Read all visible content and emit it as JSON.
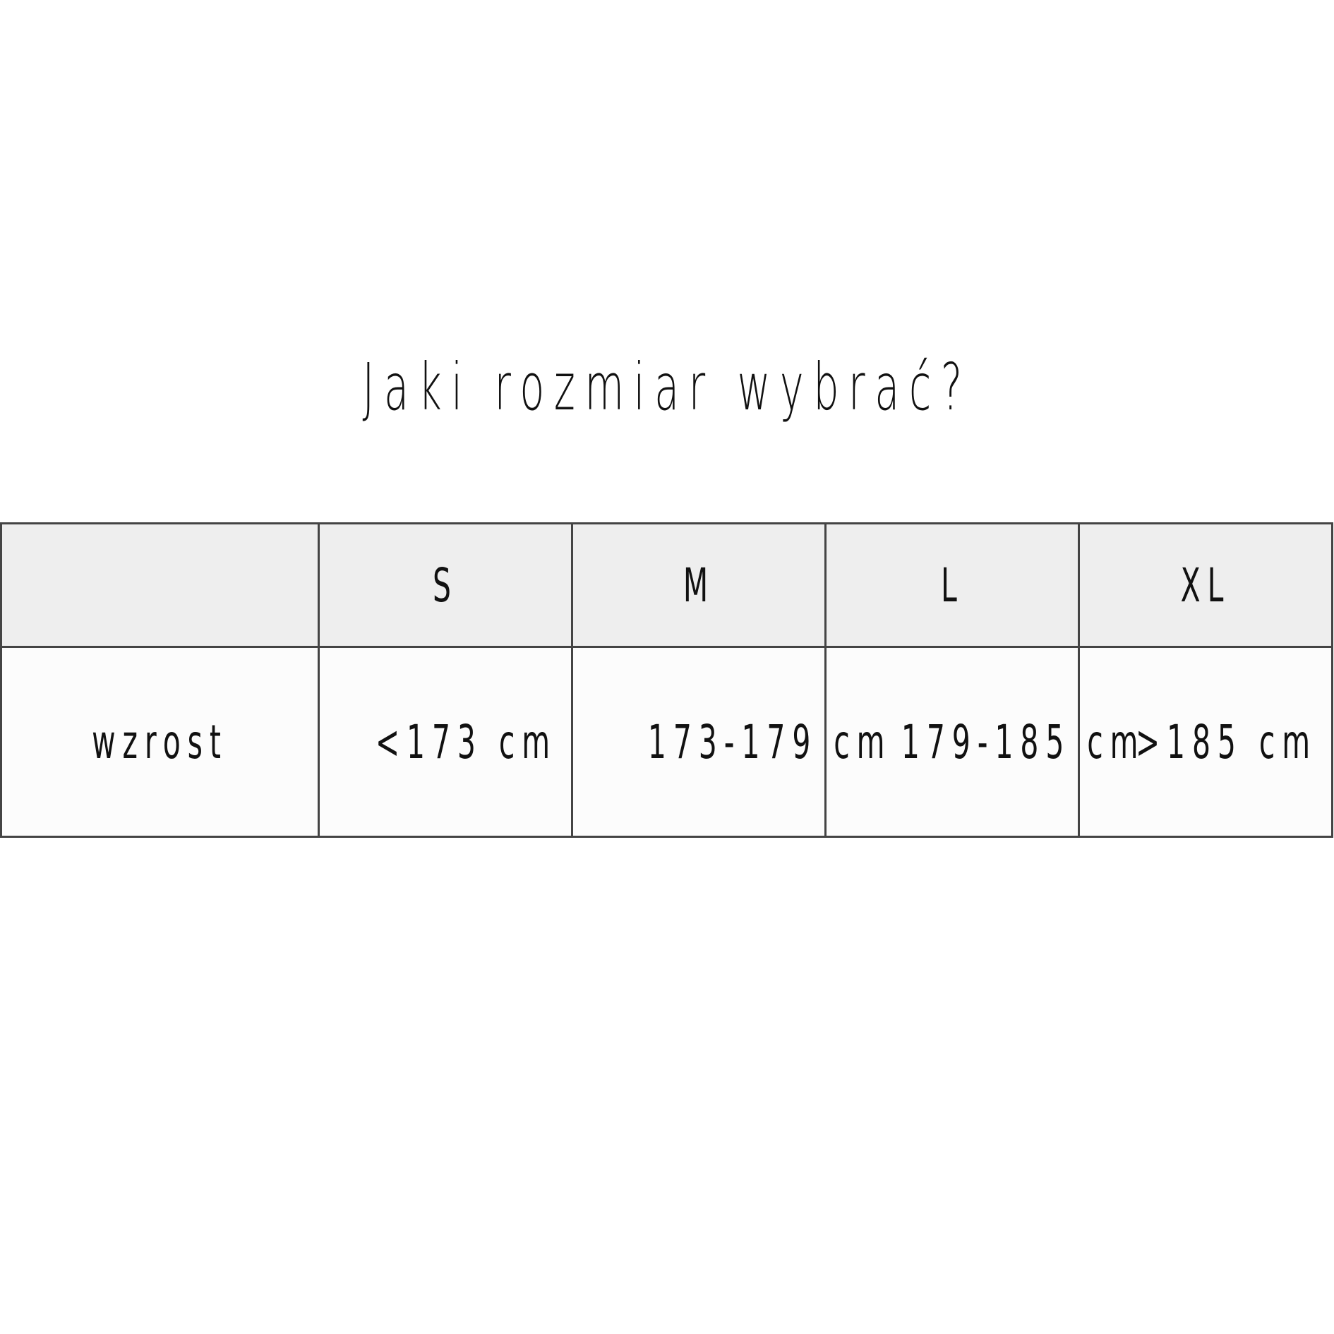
{
  "title": "Jaki rozmiar wybrać?",
  "table": {
    "headers": [
      "",
      "S",
      "M",
      "L",
      "XL"
    ],
    "rows": [
      {
        "label": "wzrost",
        "values": [
          "<173 cm",
          "173-179 cm",
          "179-185 cm",
          ">185 cm"
        ]
      }
    ]
  }
}
